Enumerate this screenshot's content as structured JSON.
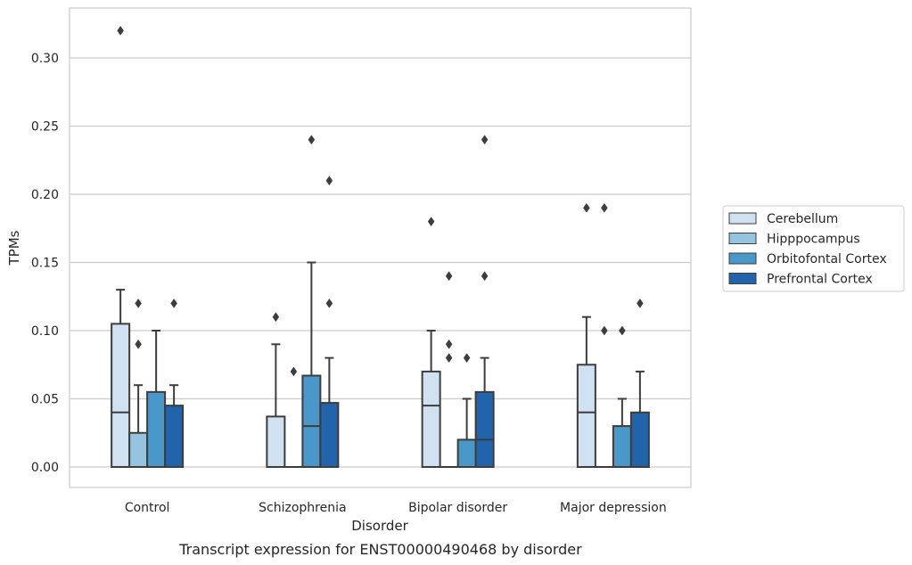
{
  "caption": "Transcript expression for ENST00000490468 by disorder",
  "chart_data": {
    "type": "boxplot",
    "xlabel": "Disorder",
    "ylabel": "TPMs",
    "ylim": [
      -0.016,
      0.337
    ],
    "yticks": [
      "0.00",
      "0.05",
      "0.10",
      "0.15",
      "0.20",
      "0.25",
      "0.30"
    ],
    "ytick_values": [
      0,
      0.05,
      0.1,
      0.15,
      0.2,
      0.25,
      0.3
    ],
    "grid": "horizontal",
    "legend_position": "right",
    "categories": [
      "Control",
      "Schizophrenia",
      "Bipolar disorder",
      "Major depression"
    ],
    "series": [
      {
        "name": "Cerebellum",
        "color": "#d0e1f2",
        "boxes": [
          {
            "q1": 0.0,
            "median": 0.04,
            "q3": 0.105,
            "whisker_low": 0.0,
            "whisker_high": 0.13,
            "outliers": [
              0.32
            ]
          },
          {
            "q1": 0.0,
            "median": 0.0,
            "q3": 0.037,
            "whisker_low": 0.0,
            "whisker_high": 0.09,
            "outliers": [
              0.11
            ]
          },
          {
            "q1": 0.0,
            "median": 0.045,
            "q3": 0.07,
            "whisker_low": 0.0,
            "whisker_high": 0.1,
            "outliers": [
              0.18
            ]
          },
          {
            "q1": 0.0,
            "median": 0.04,
            "q3": 0.075,
            "whisker_low": 0.0,
            "whisker_high": 0.11,
            "outliers": [
              0.19
            ]
          }
        ]
      },
      {
        "name": "Hipppocampus",
        "color": "#94c4df",
        "boxes": [
          {
            "q1": 0.0,
            "median": 0.0,
            "q3": 0.025,
            "whisker_low": 0.0,
            "whisker_high": 0.06,
            "outliers": [
              0.09,
              0.12
            ]
          },
          {
            "q1": 0.0,
            "median": 0.0,
            "q3": 0.0,
            "whisker_low": 0.0,
            "whisker_high": 0.0,
            "outliers": [
              0.07
            ]
          },
          {
            "q1": 0.0,
            "median": 0.0,
            "q3": 0.0,
            "whisker_low": 0.0,
            "whisker_high": 0.0,
            "outliers": [
              0.08,
              0.09,
              0.14
            ]
          },
          {
            "q1": 0.0,
            "median": 0.0,
            "q3": 0.0,
            "whisker_low": 0.0,
            "whisker_high": 0.0,
            "outliers": [
              0.1,
              0.19
            ]
          }
        ]
      },
      {
        "name": "Orbitofontal Cortex",
        "color": "#4a98c9",
        "boxes": [
          {
            "q1": 0.0,
            "median": 0.0,
            "q3": 0.055,
            "whisker_low": 0.0,
            "whisker_high": 0.1,
            "outliers": []
          },
          {
            "q1": 0.0,
            "median": 0.03,
            "q3": 0.067,
            "whisker_low": 0.0,
            "whisker_high": 0.15,
            "outliers": [
              0.24
            ]
          },
          {
            "q1": 0.0,
            "median": 0.0,
            "q3": 0.02,
            "whisker_low": 0.0,
            "whisker_high": 0.05,
            "outliers": [
              0.08
            ]
          },
          {
            "q1": 0.0,
            "median": 0.0,
            "q3": 0.03,
            "whisker_low": 0.0,
            "whisker_high": 0.05,
            "outliers": [
              0.1
            ]
          }
        ]
      },
      {
        "name": "Prefrontal Cortex",
        "color": "#2164ab",
        "boxes": [
          {
            "q1": 0.0,
            "median": 0.0,
            "q3": 0.045,
            "whisker_low": 0.0,
            "whisker_high": 0.06,
            "outliers": [
              0.12
            ]
          },
          {
            "q1": 0.0,
            "median": 0.0,
            "q3": 0.047,
            "whisker_low": 0.0,
            "whisker_high": 0.08,
            "outliers": [
              0.12,
              0.21
            ]
          },
          {
            "q1": 0.0,
            "median": 0.02,
            "q3": 0.055,
            "whisker_low": 0.0,
            "whisker_high": 0.08,
            "outliers": [
              0.14,
              0.24
            ]
          },
          {
            "q1": 0.0,
            "median": 0.0,
            "q3": 0.04,
            "whisker_low": 0.0,
            "whisker_high": 0.07,
            "outliers": [
              0.12
            ]
          }
        ]
      }
    ]
  }
}
